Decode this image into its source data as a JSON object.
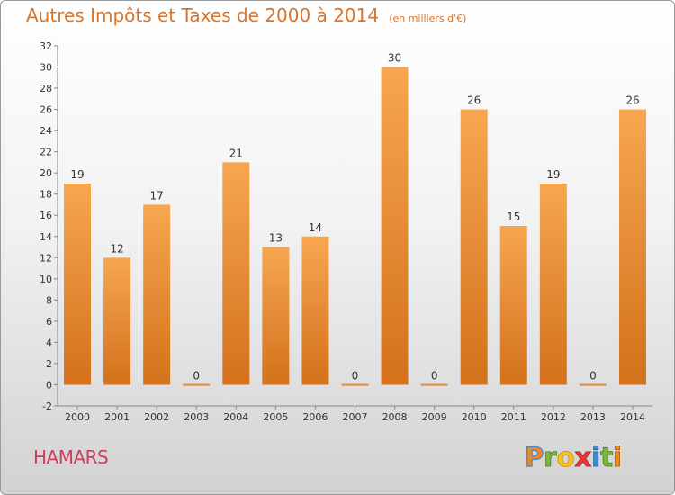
{
  "header": {
    "title": "Autres Impôts et Taxes de 2000 à 2014",
    "unit": "(en milliers d'€)"
  },
  "footer": {
    "commune": "HAMARS",
    "brand": "Proxiti"
  },
  "colors": {
    "bar_light": "#f7a650",
    "bar_dark": "#d3711c",
    "title": "#d9752a",
    "commune": "#cf3d5c"
  },
  "chart_data": {
    "type": "bar",
    "title": "Autres Impôts et Taxes de 2000 à 2014",
    "subtitle": "(en milliers d'€)",
    "categories": [
      "2000",
      "2001",
      "2002",
      "2003",
      "2004",
      "2005",
      "2006",
      "2007",
      "2008",
      "2009",
      "2010",
      "2011",
      "2012",
      "2013",
      "2014"
    ],
    "values": [
      19,
      12,
      17,
      0,
      21,
      13,
      14,
      0,
      30,
      0,
      26,
      15,
      19,
      0,
      26
    ],
    "ylim": [
      -2,
      32
    ],
    "yticks": [
      -2,
      0,
      2,
      4,
      6,
      8,
      10,
      12,
      14,
      16,
      18,
      20,
      22,
      24,
      26,
      28,
      30,
      32
    ],
    "grid": false,
    "legend": "none"
  }
}
